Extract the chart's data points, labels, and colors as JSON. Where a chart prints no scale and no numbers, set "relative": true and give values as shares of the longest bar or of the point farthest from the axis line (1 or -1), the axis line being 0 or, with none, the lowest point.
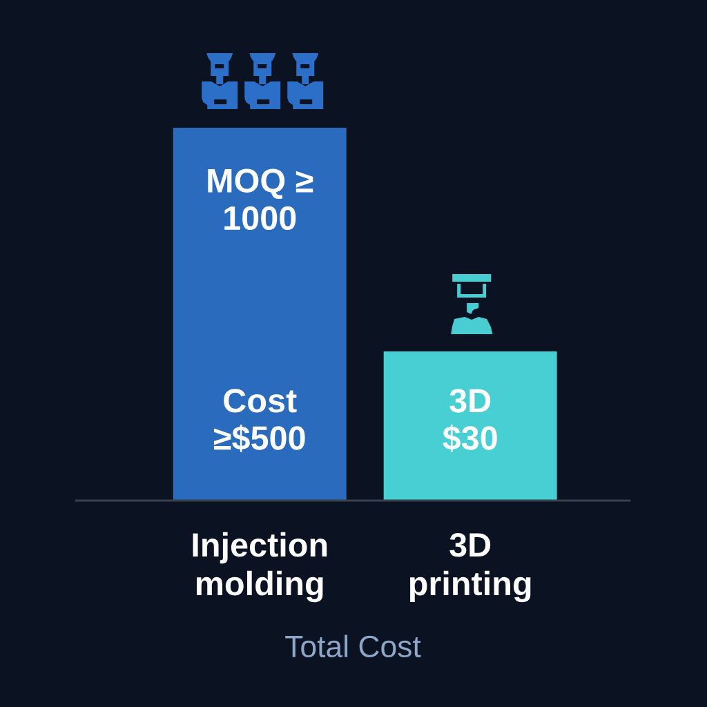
{
  "chart_data": {
    "type": "bar",
    "relative": true,
    "categories": [
      "Injection\nmolding",
      "3D\nprinting"
    ],
    "values": [
      1,
      0.4
    ],
    "colors": [
      "#2a6bbd",
      "#48cfd3"
    ],
    "xlabel": "Total Cost",
    "annotations": [
      "MOQ ≥\n1000",
      "Cost\n≥$500",
      "3D\n$30"
    ]
  }
}
